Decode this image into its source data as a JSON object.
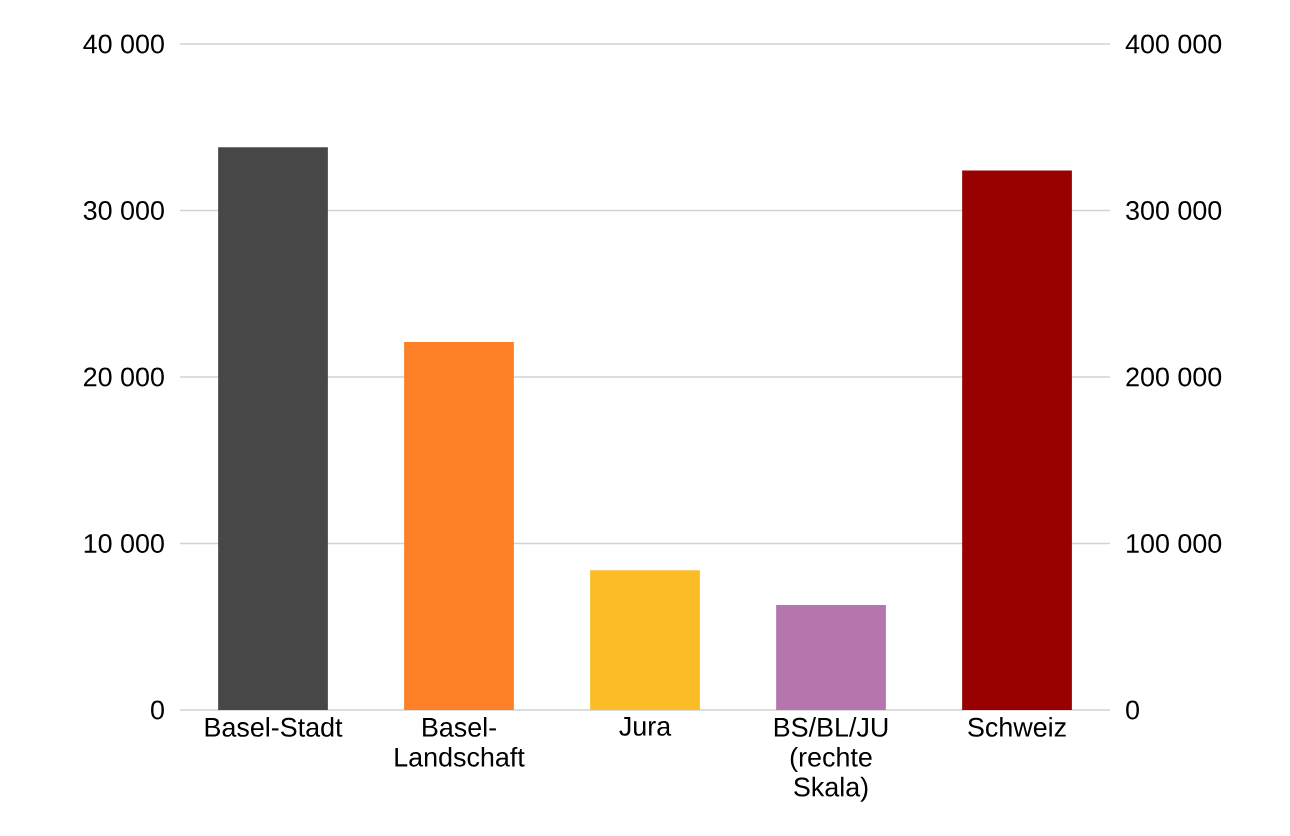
{
  "chart_data": {
    "type": "bar",
    "categories": [
      "Basel-Stadt",
      "Basel-Landschaft",
      "Jura",
      "BS/BL/JU (rechte Skala)",
      "Schweiz"
    ],
    "series": [
      {
        "colors": [
          "#474747",
          "#fd8027",
          "#fbbc26",
          null,
          null
        ],
        "values": [
          33800,
          22100,
          8400,
          null,
          null
        ]
      },
      {
        "axis": "y2",
        "colors": [
          null,
          null,
          null,
          "#b576ad",
          "#990000"
        ],
        "values": [
          null,
          null,
          null,
          63000,
          324000
        ]
      }
    ],
    "ylim": [
      0,
      40000
    ],
    "yticks": [
      {
        "value": 0,
        "label": "0"
      },
      {
        "value": 10000,
        "label": "10 000"
      },
      {
        "value": 20000,
        "label": "20 000"
      },
      {
        "value": 30000,
        "label": "30 000"
      },
      {
        "value": 40000,
        "label": "40 000"
      }
    ],
    "y2lim": [
      0,
      400000
    ],
    "y2ticks": [
      {
        "value": 0,
        "label": "0"
      },
      {
        "value": 100000,
        "label": "100 000"
      },
      {
        "value": 200000,
        "label": "200 000"
      },
      {
        "value": 300000,
        "label": "300 000"
      },
      {
        "value": 400000,
        "label": "400 000"
      }
    ],
    "grid": "y"
  }
}
